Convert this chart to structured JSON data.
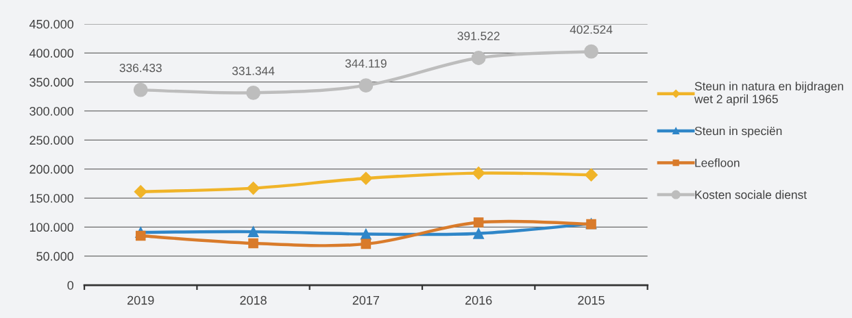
{
  "chart_data": {
    "type": "line",
    "categories": [
      "2019",
      "2018",
      "2017",
      "2016",
      "2015"
    ],
    "ylim": [
      0,
      450000
    ],
    "yticks": [
      0,
      {
        "value": 50000,
        "label": "50.000"
      },
      {
        "value": 100000,
        "label": "100.000"
      },
      {
        "value": 150000,
        "label": "150.000"
      },
      {
        "value": 200000,
        "label": "200.000"
      },
      {
        "value": 250000,
        "label": "250.000"
      },
      {
        "value": 300000,
        "label": "300.000"
      },
      {
        "value": 350000,
        "label": "350.000"
      },
      {
        "value": 400000,
        "label": "400.000"
      },
      {
        "value": 450000,
        "label": "450.000"
      }
    ],
    "grid": "y",
    "legend": "right",
    "line_style": "solid",
    "series": [
      {
        "name": "Steun in natura en bijdragen\nwet 2 april 1965",
        "color": "#f0b429",
        "marker": "diamond",
        "values": [
          161000,
          167000,
          184000,
          193000,
          190000
        ]
      },
      {
        "name": "Steun in speciën",
        "color": "#2f86c8",
        "marker": "triangle",
        "values": [
          91000,
          92000,
          88000,
          89000,
          106000
        ]
      },
      {
        "name": "Leefloon",
        "color": "#d97b2b",
        "marker": "square",
        "values": [
          85000,
          72000,
          71000,
          108000,
          105000
        ]
      },
      {
        "name": "Kosten sociale dienst",
        "color": "#bdbdbd",
        "marker": "circle",
        "values": [
          336433,
          331344,
          344119,
          391522,
          402524
        ],
        "value_labels": [
          "336.433",
          "331.344",
          "344.119",
          "391.522",
          "402.524"
        ]
      }
    ]
  }
}
